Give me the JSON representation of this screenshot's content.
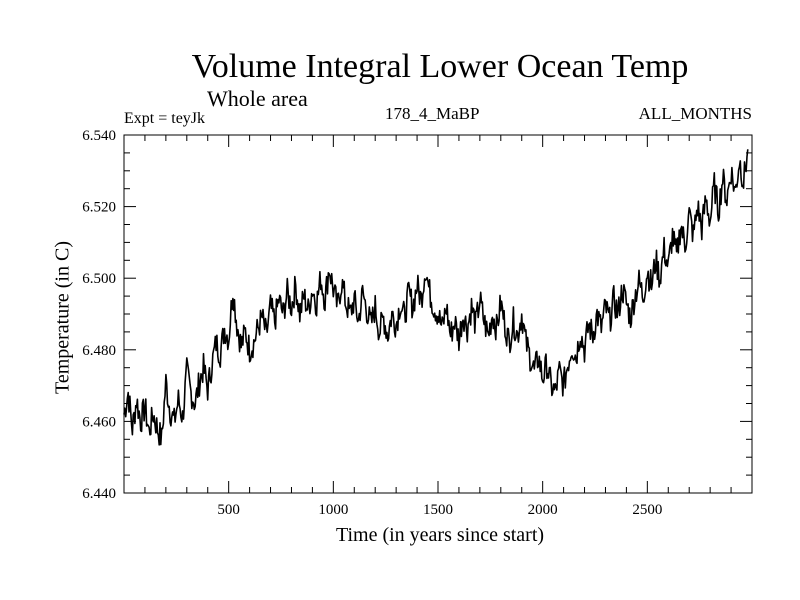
{
  "chart_data": {
    "type": "line",
    "title": "Volume Integral Lower Ocean Temp",
    "subtitle": "Whole area",
    "left_label": "Expt = teyJk",
    "center_label": "178_4_MaBP",
    "right_label": "ALL_MONTHS",
    "xlabel": "Time (in years since start)",
    "ylabel": "Temperature (in C)",
    "xlim": [
      0,
      3000
    ],
    "ylim": [
      6.44,
      6.54
    ],
    "xticks": [
      500,
      1000,
      1500,
      2000,
      2500
    ],
    "xtick_labels": [
      "500",
      "1000",
      "1500",
      "2000",
      "2500"
    ],
    "yticks": [
      6.44,
      6.46,
      6.48,
      6.5,
      6.52,
      6.54
    ],
    "ytick_labels": [
      "6.440",
      "6.460",
      "6.480",
      "6.500",
      "6.520",
      "6.540"
    ],
    "grid": false,
    "series": [
      {
        "name": "Temperature",
        "color": "#000000",
        "x_step": 20,
        "x_start": 0,
        "values": [
          6.462,
          6.468,
          6.458,
          6.466,
          6.46,
          6.464,
          6.457,
          6.462,
          6.458,
          6.455,
          6.471,
          6.463,
          6.46,
          6.466,
          6.461,
          6.474,
          6.468,
          6.465,
          6.471,
          6.475,
          6.469,
          6.476,
          6.482,
          6.479,
          6.486,
          6.483,
          6.497,
          6.487,
          6.481,
          6.485,
          6.48,
          6.482,
          6.486,
          6.489,
          6.484,
          6.492,
          6.488,
          6.494,
          6.49,
          6.496,
          6.492,
          6.498,
          6.49,
          6.495,
          6.491,
          6.497,
          6.493,
          6.5,
          6.494,
          6.503,
          6.497,
          6.492,
          6.499,
          6.493,
          6.49,
          6.494,
          6.488,
          6.496,
          6.491,
          6.487,
          6.492,
          6.485,
          6.489,
          6.484,
          6.49,
          6.487,
          6.493,
          6.489,
          6.496,
          6.492,
          6.498,
          6.494,
          6.503,
          6.496,
          6.492,
          6.49,
          6.486,
          6.492,
          6.484,
          6.488,
          6.483,
          6.49,
          6.486,
          6.492,
          6.487,
          6.494,
          6.488,
          6.484,
          6.49,
          6.486,
          6.493,
          6.487,
          6.482,
          6.488,
          6.484,
          6.49,
          6.482,
          6.478,
          6.474,
          6.478,
          6.472,
          6.476,
          6.47,
          6.468,
          6.474,
          6.47,
          6.476,
          6.481,
          6.478,
          6.485,
          6.48,
          6.487,
          6.484,
          6.49,
          6.486,
          6.492,
          6.488,
          6.494,
          6.49,
          6.497,
          6.493,
          6.489,
          6.495,
          6.499,
          6.495,
          6.502,
          6.498,
          6.505,
          6.5,
          6.508,
          6.503,
          6.512,
          6.506,
          6.515,
          6.509,
          6.518,
          6.512,
          6.52,
          6.514,
          6.522,
          6.516,
          6.526,
          6.519,
          6.528,
          6.522,
          6.53,
          6.524,
          6.533,
          6.527,
          6.536
        ]
      }
    ]
  }
}
